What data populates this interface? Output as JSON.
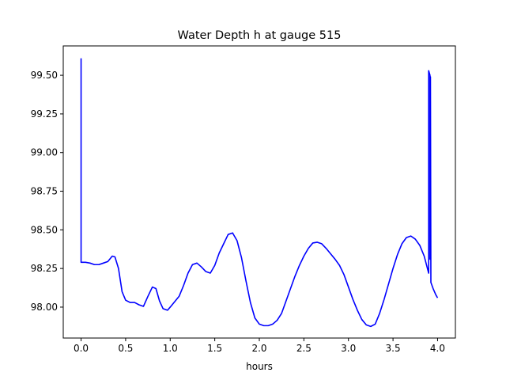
{
  "chart_data": {
    "type": "line",
    "title": "Water Depth h at gauge 515",
    "xlabel": "hours",
    "ylabel": "",
    "xlim": [
      -0.2,
      4.2
    ],
    "ylim": [
      97.8,
      99.69
    ],
    "xticks": [
      0.0,
      0.5,
      1.0,
      1.5,
      2.0,
      2.5,
      3.0,
      3.5,
      4.0
    ],
    "xtick_labels": [
      "0.0",
      "0.5",
      "1.0",
      "1.5",
      "2.0",
      "2.5",
      "3.0",
      "3.5",
      "4.0"
    ],
    "yticks": [
      98.0,
      98.25,
      98.5,
      98.75,
      99.0,
      99.25,
      99.5
    ],
    "ytick_labels": [
      "98.00",
      "98.25",
      "98.50",
      "98.75",
      "99.00",
      "99.25",
      "99.50"
    ],
    "grid": false,
    "series": [
      {
        "name": "h",
        "color": "#0000ff",
        "points": [
          [
            0.0,
            99.61
          ],
          [
            0.0,
            98.29
          ],
          [
            0.05,
            98.29
          ],
          [
            0.1,
            98.285
          ],
          [
            0.15,
            98.275
          ],
          [
            0.2,
            98.275
          ],
          [
            0.25,
            98.285
          ],
          [
            0.3,
            98.295
          ],
          [
            0.35,
            98.33
          ],
          [
            0.38,
            98.325
          ],
          [
            0.42,
            98.25
          ],
          [
            0.46,
            98.1
          ],
          [
            0.5,
            98.045
          ],
          [
            0.55,
            98.03
          ],
          [
            0.6,
            98.03
          ],
          [
            0.65,
            98.015
          ],
          [
            0.7,
            98.005
          ],
          [
            0.75,
            98.07
          ],
          [
            0.8,
            98.13
          ],
          [
            0.84,
            98.12
          ],
          [
            0.88,
            98.04
          ],
          [
            0.92,
            97.99
          ],
          [
            0.97,
            97.98
          ],
          [
            1.0,
            98.0
          ],
          [
            1.05,
            98.035
          ],
          [
            1.1,
            98.07
          ],
          [
            1.15,
            98.14
          ],
          [
            1.2,
            98.22
          ],
          [
            1.25,
            98.275
          ],
          [
            1.3,
            98.285
          ],
          [
            1.35,
            98.26
          ],
          [
            1.4,
            98.23
          ],
          [
            1.45,
            98.22
          ],
          [
            1.5,
            98.27
          ],
          [
            1.55,
            98.35
          ],
          [
            1.6,
            98.41
          ],
          [
            1.65,
            98.47
          ],
          [
            1.7,
            98.48
          ],
          [
            1.75,
            98.43
          ],
          [
            1.8,
            98.32
          ],
          [
            1.85,
            98.17
          ],
          [
            1.9,
            98.03
          ],
          [
            1.95,
            97.93
          ],
          [
            2.0,
            97.89
          ],
          [
            2.05,
            97.88
          ],
          [
            2.1,
            97.88
          ],
          [
            2.15,
            97.89
          ],
          [
            2.2,
            97.915
          ],
          [
            2.25,
            97.96
          ],
          [
            2.3,
            98.04
          ],
          [
            2.35,
            98.12
          ],
          [
            2.4,
            98.2
          ],
          [
            2.45,
            98.27
          ],
          [
            2.5,
            98.33
          ],
          [
            2.55,
            98.38
          ],
          [
            2.6,
            98.415
          ],
          [
            2.65,
            98.42
          ],
          [
            2.7,
            98.41
          ],
          [
            2.75,
            98.38
          ],
          [
            2.8,
            98.345
          ],
          [
            2.85,
            98.31
          ],
          [
            2.9,
            98.27
          ],
          [
            2.95,
            98.21
          ],
          [
            3.0,
            98.13
          ],
          [
            3.05,
            98.05
          ],
          [
            3.1,
            97.98
          ],
          [
            3.15,
            97.92
          ],
          [
            3.2,
            97.885
          ],
          [
            3.25,
            97.875
          ],
          [
            3.3,
            97.89
          ],
          [
            3.35,
            97.96
          ],
          [
            3.4,
            98.05
          ],
          [
            3.45,
            98.15
          ],
          [
            3.5,
            98.25
          ],
          [
            3.55,
            98.34
          ],
          [
            3.6,
            98.41
          ],
          [
            3.65,
            98.45
          ],
          [
            3.7,
            98.46
          ],
          [
            3.75,
            98.44
          ],
          [
            3.8,
            98.4
          ],
          [
            3.85,
            98.33
          ],
          [
            3.9,
            98.22
          ],
          [
            3.9,
            99.53
          ],
          [
            3.915,
            99.5
          ],
          [
            3.915,
            98.31
          ],
          [
            3.92,
            99.49
          ],
          [
            3.925,
            98.16
          ],
          [
            3.95,
            98.12
          ],
          [
            3.98,
            98.08
          ],
          [
            4.0,
            98.06
          ]
        ]
      }
    ]
  }
}
